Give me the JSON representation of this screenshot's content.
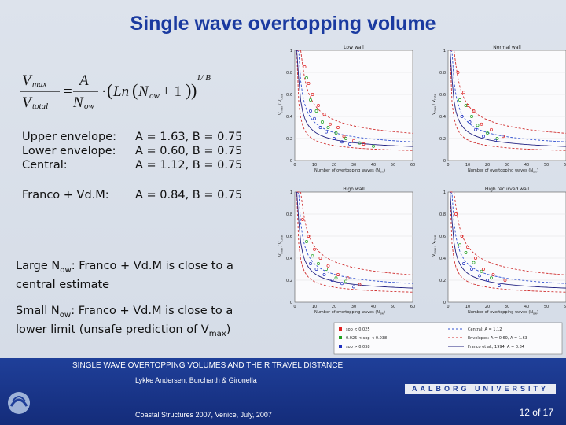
{
  "slide": {
    "title": "Single wave overtopping volume",
    "formula": {
      "lhs_num": "V",
      "lhs_num_sub": "max",
      "lhs_den": "V",
      "lhs_den_sub": "total",
      "rhs_num": "A",
      "rhs_den": "N",
      "rhs_den_sub": "ow",
      "ln": "Ln",
      "ln_arg": "N",
      "ln_arg_sub": "ow",
      "ln_plus": "+ 1",
      "exponent": "1/ B"
    },
    "params": [
      {
        "label": "Upper envelope:",
        "value": "A = 1.63, B = 0.75"
      },
      {
        "label": "Lower envelope:",
        "value": "A = 0.60, B = 0.75"
      },
      {
        "label": "Central:",
        "value": "A = 1.12, B = 0.75"
      },
      {
        "label": "Franco + Vd.M:",
        "value": "A = 0.84, B = 0.75"
      }
    ],
    "note1": {
      "pre": "Large N",
      "sub": "ow",
      "post": ": Franco + Vd.M is close to a central estimate"
    },
    "note2": {
      "pre": "Small N",
      "sub": "ow",
      "post": ": Franco + Vd.M is close to a lower limit (unsafe prediction of V",
      "sub2": "max",
      "tail": ")"
    }
  },
  "plots": {
    "panels": [
      {
        "title": "Low wall"
      },
      {
        "title": "Normal wall"
      },
      {
        "title": "High wall"
      },
      {
        "title": "High recurved wall"
      }
    ],
    "xlabel": "Number of overtopping waves (N",
    "xlabel_sub": "ow",
    "xlabel_tail": ")",
    "ylabel": "V",
    "ylabel_sub": "max",
    "ylabel_mid": " / V",
    "ylabel_sub2": "total",
    "xticks": [
      "0",
      "10",
      "20",
      "30",
      "40",
      "50",
      "60"
    ],
    "yticks": [
      "1",
      "0.8",
      "0.6",
      "0.4",
      "0.2",
      "0"
    ],
    "legend_left": [
      "s<sub>op</sub> < 0.025",
      "0.025 < s<sub>op</sub> < 0.038",
      "s<sub>op</sub> > 0.038"
    ],
    "legend_right": [
      "Central: A = 1.12",
      "Envelopes: A = 0.60, A = 1.63",
      "Franco et al., 1994: A = 0.84"
    ],
    "colors": {
      "red": "#e02020",
      "green": "#20a020",
      "blue": "#2030c0",
      "central": "#3050d0",
      "envelope": "#d03030",
      "franco": "#202080"
    }
  },
  "chart_data": [
    {
      "type": "scatter",
      "title": "Low wall",
      "xlabel": "Number of overtopping waves (Now)",
      "ylabel": "Vmax / Vtotal",
      "xlim": [
        0,
        60
      ],
      "ylim": [
        0,
        1
      ],
      "series": [
        {
          "name": "Central: A = 1.12",
          "A": 1.12,
          "B": 0.75
        },
        {
          "name": "Envelopes: A = 0.60",
          "A": 0.6,
          "B": 0.75
        },
        {
          "name": "Envelopes: A = 1.63",
          "A": 1.63,
          "B": 0.75
        },
        {
          "name": "Franco et al., 1994: A = 0.84",
          "A": 0.84,
          "B": 0.75
        },
        {
          "name": "sop < 0.025",
          "x": [
            5,
            7,
            9,
            12,
            15,
            18,
            22,
            25,
            30,
            35
          ],
          "y": [
            0.85,
            0.7,
            0.6,
            0.5,
            0.42,
            0.33,
            0.3,
            0.22,
            0.18,
            0.15
          ]
        },
        {
          "name": "0.025 < sop < 0.038",
          "x": [
            6,
            8,
            11,
            14,
            17,
            21,
            26,
            33,
            40
          ],
          "y": [
            0.75,
            0.55,
            0.45,
            0.35,
            0.3,
            0.25,
            0.2,
            0.16,
            0.13
          ]
        },
        {
          "name": "sop > 0.038",
          "x": [
            8,
            10,
            13,
            16,
            20,
            24,
            28
          ],
          "y": [
            0.45,
            0.38,
            0.3,
            0.26,
            0.2,
            0.17,
            0.15
          ]
        }
      ]
    },
    {
      "type": "scatter",
      "title": "Normal wall",
      "xlabel": "Number of overtopping waves (Now)",
      "ylabel": "Vmax / Vtotal",
      "xlim": [
        0,
        60
      ],
      "ylim": [
        0,
        1
      ],
      "series": [
        {
          "name": "sop < 0.025",
          "x": [
            5,
            8,
            10,
            13,
            17,
            22,
            28
          ],
          "y": [
            0.8,
            0.62,
            0.5,
            0.45,
            0.33,
            0.28,
            0.22
          ]
        },
        {
          "name": "0.025 < sop < 0.038",
          "x": [
            6,
            9,
            12,
            15,
            20,
            25
          ],
          "y": [
            0.55,
            0.5,
            0.4,
            0.32,
            0.25,
            0.2
          ]
        },
        {
          "name": "sop > 0.038",
          "x": [
            7,
            11,
            14,
            18,
            24
          ],
          "y": [
            0.4,
            0.35,
            0.28,
            0.22,
            0.18
          ]
        }
      ]
    },
    {
      "type": "scatter",
      "title": "High wall",
      "xlabel": "Number of overtopping waves (Now)",
      "ylabel": "Vmax / Vtotal",
      "xlim": [
        0,
        60
      ],
      "ylim": [
        0,
        1
      ],
      "series": [
        {
          "name": "sop < 0.025",
          "x": [
            4,
            7,
            10,
            13,
            17,
            22,
            27,
            33
          ],
          "y": [
            0.75,
            0.6,
            0.48,
            0.4,
            0.33,
            0.25,
            0.22,
            0.16
          ]
        },
        {
          "name": "0.025 < sop < 0.038",
          "x": [
            6,
            9,
            12,
            16,
            21,
            26
          ],
          "y": [
            0.55,
            0.42,
            0.35,
            0.3,
            0.22,
            0.19
          ]
        },
        {
          "name": "sop > 0.038",
          "x": [
            8,
            11,
            15,
            19,
            24,
            30
          ],
          "y": [
            0.35,
            0.3,
            0.25,
            0.2,
            0.17,
            0.14
          ]
        }
      ]
    },
    {
      "type": "scatter",
      "title": "High recurved wall",
      "xlabel": "Number of overtopping waves (Now)",
      "ylabel": "Vmax / Vtotal",
      "xlim": [
        0,
        60
      ],
      "ylim": [
        0,
        1
      ],
      "series": [
        {
          "name": "sop < 0.025",
          "x": [
            4,
            7,
            10,
            14,
            18,
            23,
            29
          ],
          "y": [
            0.8,
            0.6,
            0.5,
            0.4,
            0.3,
            0.25,
            0.2
          ]
        },
        {
          "name": "0.025 < sop < 0.038",
          "x": [
            6,
            9,
            13,
            17,
            22
          ],
          "y": [
            0.52,
            0.45,
            0.36,
            0.28,
            0.22
          ]
        },
        {
          "name": "sop > 0.038",
          "x": [
            8,
            12,
            16,
            20,
            26
          ],
          "y": [
            0.35,
            0.3,
            0.24,
            0.2,
            0.15
          ]
        }
      ]
    }
  ],
  "footer": {
    "line1": "SINGLE WAVE OVERTOPPING VOLUMES AND THEIR TRAVEL DISTANCE",
    "line2": "Lykke Andersen, Burcharth & Gironella",
    "line3": "Coastal Structures 2007, Venice, July, 2007",
    "university": "AALBORG UNIVERSITY",
    "page": "12 of 17"
  }
}
